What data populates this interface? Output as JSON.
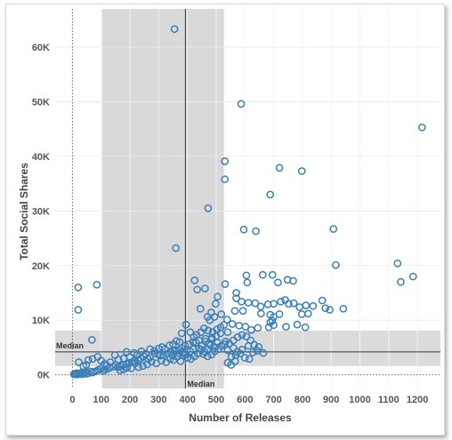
{
  "chart_data": {
    "type": "scatter",
    "xlabel": "Number of Releases",
    "ylabel": "Total Social Shares",
    "xlim": [
      -60,
      1280
    ],
    "ylim": [
      -2500,
      67000
    ],
    "x_ticks": [
      {
        "value": 0,
        "label": "0"
      },
      {
        "value": 100,
        "label": "100"
      },
      {
        "value": 200,
        "label": "200"
      },
      {
        "value": 300,
        "label": "300"
      },
      {
        "value": 400,
        "label": "400"
      },
      {
        "value": 500,
        "label": "500"
      },
      {
        "value": 600,
        "label": "600"
      },
      {
        "value": 700,
        "label": "700"
      },
      {
        "value": 800,
        "label": "800"
      },
      {
        "value": 900,
        "label": "900"
      },
      {
        "value": 1000,
        "label": "1000"
      },
      {
        "value": 1100,
        "label": "1100"
      },
      {
        "value": 1200,
        "label": "1200"
      }
    ],
    "y_ticks": [
      {
        "value": 0,
        "label": "0K"
      },
      {
        "value": 10000,
        "label": "10K"
      },
      {
        "value": 20000,
        "label": "20K"
      },
      {
        "value": 30000,
        "label": "30K"
      },
      {
        "value": 40000,
        "label": "40K"
      },
      {
        "value": 50000,
        "label": "50K"
      },
      {
        "value": 60000,
        "label": "60K"
      }
    ],
    "reference_lines": {
      "x_median": {
        "value": 393,
        "label": "Median"
      },
      "y_median": {
        "value": 4200,
        "label": "Median"
      }
    },
    "x_band": [
      103,
      527
    ],
    "y_band": [
      1600,
      8100
    ],
    "grid": true,
    "point_color": "#3a7fb8",
    "band_color": "#d9d9d9",
    "points": [
      [
        355,
        63300
      ],
      [
        587,
        49600
      ],
      [
        1216,
        45300
      ],
      [
        530,
        39100
      ],
      [
        720,
        37900
      ],
      [
        798,
        37300
      ],
      [
        530,
        35800
      ],
      [
        688,
        33000
      ],
      [
        472,
        30500
      ],
      [
        908,
        26700
      ],
      [
        596,
        26600
      ],
      [
        638,
        26300
      ],
      [
        1131,
        20400
      ],
      [
        916,
        20100
      ],
      [
        360,
        23200
      ],
      [
        1142,
        17000
      ],
      [
        1185,
        18000
      ],
      [
        20,
        16000
      ],
      [
        85,
        16500
      ],
      [
        425,
        17300
      ],
      [
        434,
        15600
      ],
      [
        461,
        15800
      ],
      [
        531,
        16600
      ],
      [
        662,
        18300
      ],
      [
        696,
        18300
      ],
      [
        715,
        16900
      ],
      [
        748,
        17400
      ],
      [
        768,
        17200
      ],
      [
        608,
        16900
      ],
      [
        605,
        18200
      ],
      [
        570,
        15000
      ],
      [
        570,
        14000
      ],
      [
        588,
        13400
      ],
      [
        612,
        13200
      ],
      [
        636,
        13100
      ],
      [
        655,
        12500
      ],
      [
        680,
        12900
      ],
      [
        700,
        13000
      ],
      [
        725,
        13400
      ],
      [
        740,
        13700
      ],
      [
        752,
        13000
      ],
      [
        770,
        13100
      ],
      [
        790,
        12400
      ],
      [
        812,
        12700
      ],
      [
        837,
        12600
      ],
      [
        869,
        13600
      ],
      [
        880,
        12200
      ],
      [
        895,
        11900
      ],
      [
        942,
        12100
      ],
      [
        656,
        11200
      ],
      [
        688,
        11000
      ],
      [
        700,
        10600
      ],
      [
        720,
        11100
      ],
      [
        695,
        9900
      ],
      [
        688,
        9600
      ],
      [
        700,
        9100
      ],
      [
        683,
        8700
      ],
      [
        743,
        8800
      ],
      [
        782,
        9200
      ],
      [
        810,
        8700
      ],
      [
        798,
        11100
      ],
      [
        820,
        11200
      ],
      [
        20,
        11900
      ],
      [
        68,
        6400
      ],
      [
        445,
        12100
      ],
      [
        505,
        14300
      ],
      [
        498,
        13000
      ],
      [
        483,
        11400
      ],
      [
        470,
        10600
      ],
      [
        478,
        10000
      ],
      [
        494,
        10600
      ],
      [
        518,
        11100
      ],
      [
        538,
        10100
      ],
      [
        556,
        9300
      ],
      [
        580,
        9000
      ],
      [
        602,
        8800
      ],
      [
        622,
        8200
      ],
      [
        645,
        8600
      ],
      [
        565,
        11700
      ],
      [
        593,
        11700
      ],
      [
        540,
        7800
      ],
      [
        515,
        7600
      ],
      [
        500,
        7100
      ],
      [
        485,
        6800
      ],
      [
        463,
        6600
      ],
      [
        440,
        6300
      ],
      [
        420,
        6000
      ],
      [
        405,
        5600
      ],
      [
        392,
        5300
      ],
      [
        380,
        4900
      ],
      [
        370,
        4500
      ],
      [
        355,
        4300
      ],
      [
        343,
        4100
      ],
      [
        330,
        3900
      ],
      [
        316,
        3600
      ],
      [
        305,
        3500
      ],
      [
        298,
        3800
      ],
      [
        287,
        3900
      ],
      [
        270,
        3200
      ],
      [
        263,
        2900
      ],
      [
        248,
        3400
      ],
      [
        238,
        3000
      ],
      [
        228,
        2700
      ],
      [
        214,
        2500
      ],
      [
        206,
        2300
      ],
      [
        198,
        2200
      ],
      [
        190,
        2000
      ],
      [
        176,
        1800
      ],
      [
        165,
        1600
      ],
      [
        158,
        1400
      ],
      [
        150,
        1800
      ],
      [
        142,
        1500
      ],
      [
        130,
        1300
      ],
      [
        122,
        1100
      ],
      [
        114,
        900
      ],
      [
        106,
        700
      ],
      [
        98,
        1100
      ],
      [
        90,
        900
      ],
      [
        84,
        700
      ],
      [
        76,
        600
      ],
      [
        70,
        400
      ],
      [
        62,
        600
      ],
      [
        56,
        300
      ],
      [
        50,
        200
      ],
      [
        45,
        500
      ],
      [
        40,
        300
      ],
      [
        35,
        100
      ],
      [
        30,
        400
      ],
      [
        25,
        200
      ],
      [
        20,
        100
      ],
      [
        15,
        300
      ],
      [
        12,
        50
      ],
      [
        10,
        200
      ],
      [
        8,
        150
      ],
      [
        5,
        100
      ],
      [
        22,
        2300
      ],
      [
        38,
        1600
      ],
      [
        48,
        1800
      ],
      [
        55,
        2700
      ],
      [
        70,
        2900
      ],
      [
        88,
        3300
      ],
      [
        100,
        2600
      ],
      [
        112,
        2000
      ],
      [
        120,
        1700
      ],
      [
        132,
        2300
      ],
      [
        148,
        3600
      ],
      [
        160,
        2800
      ],
      [
        178,
        3000
      ],
      [
        188,
        4200
      ],
      [
        200,
        3200
      ],
      [
        215,
        4000
      ],
      [
        225,
        3600
      ],
      [
        240,
        4300
      ],
      [
        255,
        3800
      ],
      [
        270,
        4700
      ],
      [
        285,
        4400
      ],
      [
        300,
        4800
      ],
      [
        312,
        5100
      ],
      [
        322,
        4700
      ],
      [
        338,
        5400
      ],
      [
        350,
        5600
      ],
      [
        362,
        6200
      ],
      [
        373,
        6000
      ],
      [
        380,
        7600
      ],
      [
        395,
        9200
      ],
      [
        410,
        7800
      ],
      [
        422,
        6900
      ],
      [
        432,
        7300
      ],
      [
        447,
        7800
      ],
      [
        458,
        8500
      ],
      [
        472,
        8100
      ],
      [
        488,
        7800
      ],
      [
        503,
        8300
      ],
      [
        516,
        8700
      ],
      [
        527,
        9100
      ],
      [
        533,
        6100
      ],
      [
        545,
        5700
      ],
      [
        560,
        6300
      ],
      [
        575,
        6900
      ],
      [
        590,
        7300
      ],
      [
        605,
        7000
      ],
      [
        620,
        6300
      ],
      [
        632,
        5500
      ],
      [
        648,
        5100
      ],
      [
        560,
        4900
      ],
      [
        574,
        4200
      ],
      [
        590,
        4600
      ],
      [
        612,
        5300
      ],
      [
        628,
        4100
      ],
      [
        643,
        4400
      ],
      [
        664,
        4000
      ],
      [
        540,
        4500
      ],
      [
        553,
        3300
      ],
      [
        568,
        3600
      ],
      [
        584,
        3900
      ],
      [
        600,
        3100
      ],
      [
        615,
        2900
      ],
      [
        540,
        2200
      ],
      [
        552,
        1800
      ],
      [
        566,
        2500
      ],
      [
        505,
        5900
      ],
      [
        495,
        5100
      ],
      [
        480,
        5400
      ],
      [
        470,
        4700
      ],
      [
        460,
        4200
      ],
      [
        448,
        4600
      ],
      [
        436,
        3900
      ],
      [
        425,
        3400
      ],
      [
        412,
        2900
      ],
      [
        400,
        3100
      ],
      [
        388,
        3600
      ],
      [
        376,
        2500
      ],
      [
        365,
        3300
      ],
      [
        352,
        2700
      ],
      [
        340,
        2900
      ],
      [
        326,
        2300
      ],
      [
        310,
        2600
      ],
      [
        292,
        2100
      ],
      [
        275,
        2400
      ],
      [
        260,
        1900
      ],
      [
        245,
        1600
      ],
      [
        230,
        1400
      ],
      [
        218,
        2100
      ],
      [
        205,
        1200
      ],
      [
        190,
        1300
      ],
      [
        178,
        1000
      ],
      [
        166,
        800
      ],
      [
        430,
        5900
      ],
      [
        450,
        5300
      ],
      [
        463,
        6100
      ],
      [
        475,
        5800
      ],
      [
        485,
        6500
      ],
      [
        440,
        4800
      ],
      [
        455,
        3800
      ],
      [
        470,
        3400
      ],
      [
        484,
        3700
      ],
      [
        495,
        4300
      ],
      [
        508,
        4700
      ],
      [
        518,
        5300
      ],
      [
        530,
        5600
      ],
      [
        410,
        4300
      ],
      [
        420,
        4700
      ],
      [
        395,
        3800
      ],
      [
        383,
        4100
      ],
      [
        372,
        3900
      ],
      [
        360,
        4500
      ],
      [
        348,
        3500
      ]
    ]
  }
}
